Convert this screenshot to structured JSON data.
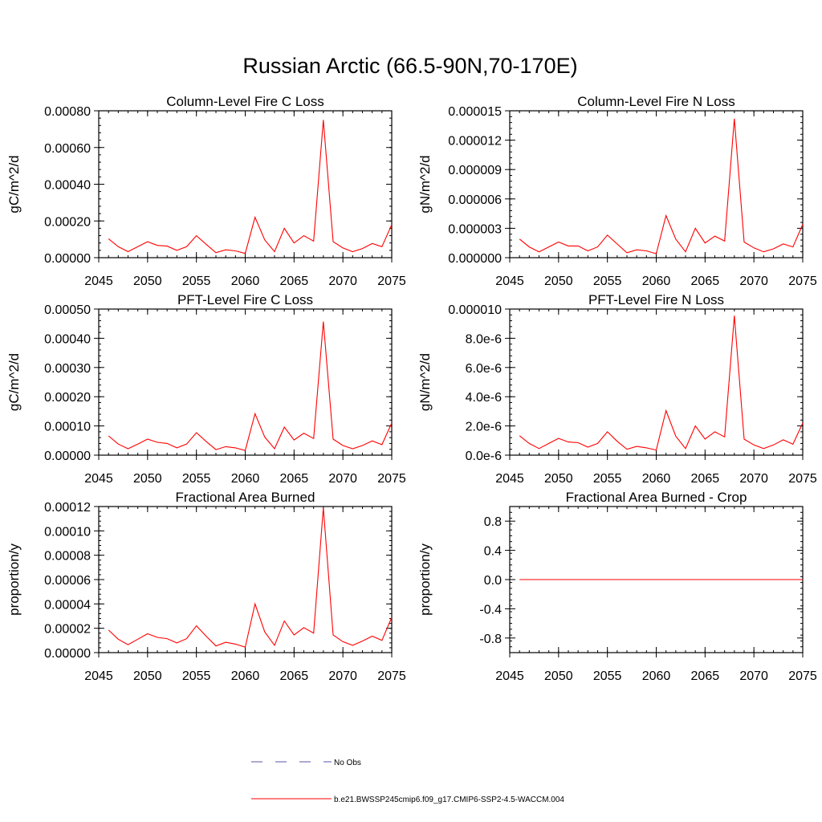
{
  "figure": {
    "title": "Russian Arctic (66.5-90N,70-170E)",
    "line_color": "#ff0000",
    "obs_color": "#5555aa"
  },
  "legend": [
    {
      "label": "No Obs",
      "style": "dashed",
      "color": "#5555aa"
    },
    {
      "label": "b.e21.BWSSP245cmip6.f09_g17.CMIP6-SSP2-4.5-WACCM.004",
      "style": "solid",
      "color": "#ff0000"
    }
  ],
  "chart_data": [
    {
      "type": "line",
      "title": "Column-Level Fire C Loss",
      "ylabel": "gC/m^2/d",
      "xlim": [
        2045,
        2075
      ],
      "ylim": [
        0,
        0.0008
      ],
      "xticks": [
        2045,
        2050,
        2055,
        2060,
        2065,
        2070,
        2075
      ],
      "xtick_labels": [
        "2045",
        "2050",
        "2055",
        "2060",
        "2065",
        "2070",
        "2075"
      ],
      "yticks": [
        0,
        0.0002,
        0.0004,
        0.0006,
        0.0008
      ],
      "ytick_labels": [
        "0.00000",
        "0.00020",
        "0.00040",
        "0.00060",
        "0.00080"
      ],
      "x": [
        2046,
        2047,
        2048,
        2049,
        2050,
        2051,
        2052,
        2053,
        2054,
        2055,
        2056,
        2057,
        2058,
        2059,
        2060,
        2061,
        2062,
        2063,
        2064,
        2065,
        2066,
        2067,
        2068,
        2069,
        2070,
        2071,
        2072,
        2073,
        2074,
        2075
      ],
      "series": [
        {
          "values": [
            0.000103,
            6e-05,
            3.3e-05,
            6e-05,
            8.7e-05,
            6.7e-05,
            6.3e-05,
            4e-05,
            6e-05,
            0.00012,
            7.3e-05,
            2.7e-05,
            4.3e-05,
            3.7e-05,
            2.3e-05,
            0.00022,
            9.7e-05,
            3.3e-05,
            0.00016,
            8e-05,
            0.00012,
            9e-05,
            0.00075,
            8.7e-05,
            5.3e-05,
            3.3e-05,
            5e-05,
            7.7e-05,
            6e-05,
            0.00018
          ]
        }
      ]
    },
    {
      "type": "line",
      "title": "Column-Level Fire N Loss",
      "ylabel": "gN/m^2/d",
      "xlim": [
        2045,
        2075
      ],
      "ylim": [
        0,
        1.5e-05
      ],
      "xticks": [
        2045,
        2050,
        2055,
        2060,
        2065,
        2070,
        2075
      ],
      "xtick_labels": [
        "2045",
        "2050",
        "2055",
        "2060",
        "2065",
        "2070",
        "2075"
      ],
      "yticks": [
        0,
        3e-06,
        6e-06,
        9e-06,
        1.2e-05,
        1.5e-05
      ],
      "ytick_labels": [
        "0.000000",
        "0.000003",
        "0.000006",
        "0.000009",
        "0.000012",
        "0.000015"
      ],
      "x": [
        2046,
        2047,
        2048,
        2049,
        2050,
        2051,
        2052,
        2053,
        2054,
        2055,
        2056,
        2057,
        2058,
        2059,
        2060,
        2061,
        2062,
        2063,
        2064,
        2065,
        2066,
        2067,
        2068,
        2069,
        2070,
        2071,
        2072,
        2073,
        2074,
        2075
      ],
      "series": [
        {
          "values": [
            1.9e-06,
            1.1e-06,
            6e-07,
            1.1e-06,
            1.6e-06,
            1.2e-06,
            1.2e-06,
            7e-07,
            1.1e-06,
            2.3e-06,
            1.4e-06,
            5e-07,
            8e-07,
            7e-07,
            4e-07,
            4.3e-06,
            1.9e-06,
            6e-07,
            3e-06,
            1.5e-06,
            2.2e-06,
            1.7e-06,
            1.42e-05,
            1.6e-06,
            1e-06,
            6e-07,
            9e-07,
            1.4e-06,
            1.1e-06,
            3.4e-06
          ]
        }
      ]
    },
    {
      "type": "line",
      "title": "PFT-Level Fire C Loss",
      "ylabel": "gC/m^2/d",
      "xlim": [
        2045,
        2075
      ],
      "ylim": [
        0,
        0.0005
      ],
      "xticks": [
        2045,
        2050,
        2055,
        2060,
        2065,
        2070,
        2075
      ],
      "xtick_labels": [
        "2045",
        "2050",
        "2055",
        "2060",
        "2065",
        "2070",
        "2075"
      ],
      "yticks": [
        0,
        0.0001,
        0.0002,
        0.0003,
        0.0004,
        0.0005
      ],
      "ytick_labels": [
        "0.00000",
        "0.00010",
        "0.00020",
        "0.00030",
        "0.00040",
        "0.00050"
      ],
      "x": [
        2046,
        2047,
        2048,
        2049,
        2050,
        2051,
        2052,
        2053,
        2054,
        2055,
        2056,
        2057,
        2058,
        2059,
        2060,
        2061,
        2062,
        2063,
        2064,
        2065,
        2066,
        2067,
        2068,
        2069,
        2070,
        2071,
        2072,
        2073,
        2074,
        2075
      ],
      "series": [
        {
          "values": [
            6.6e-05,
            3.8e-05,
            2.2e-05,
            3.8e-05,
            5.5e-05,
            4.4e-05,
            4e-05,
            2.5e-05,
            3.8e-05,
            7.7e-05,
            4.7e-05,
            1.9e-05,
            2.9e-05,
            2.5e-05,
            1.6e-05,
            0.000142,
            6.2e-05,
            2.2e-05,
            9.6e-05,
            5.2e-05,
            7.5e-05,
            5.7e-05,
            0.000457,
            5.5e-05,
            3.3e-05,
            2.2e-05,
            3.3e-05,
            4.9e-05,
            3.6e-05,
            0.00011
          ]
        }
      ]
    },
    {
      "type": "line",
      "title": "PFT-Level Fire N Loss",
      "ylabel": "gN/m^2/d",
      "xlim": [
        2045,
        2075
      ],
      "ylim": [
        0,
        1e-05
      ],
      "xticks": [
        2045,
        2050,
        2055,
        2060,
        2065,
        2070,
        2075
      ],
      "xtick_labels": [
        "2045",
        "2050",
        "2055",
        "2060",
        "2065",
        "2070",
        "2075"
      ],
      "yticks": [
        0,
        2e-06,
        4e-06,
        6e-06,
        8e-06,
        1e-05
      ],
      "ytick_labels": [
        "0.0e-6",
        "2.0e-6",
        "4.0e-6",
        "6.0e-6",
        "8.0e-6",
        "0.000010"
      ],
      "x": [
        2046,
        2047,
        2048,
        2049,
        2050,
        2051,
        2052,
        2053,
        2054,
        2055,
        2056,
        2057,
        2058,
        2059,
        2060,
        2061,
        2062,
        2063,
        2064,
        2065,
        2066,
        2067,
        2068,
        2069,
        2070,
        2071,
        2072,
        2073,
        2074,
        2075
      ],
      "series": [
        {
          "values": [
            1.33e-06,
            8e-07,
            4.5e-07,
            8e-07,
            1.15e-06,
            9e-07,
            8.5e-07,
            5.5e-07,
            8e-07,
            1.6e-06,
            9.5e-07,
            4e-07,
            6e-07,
            5e-07,
            3.5e-07,
            3.05e-06,
            1.3e-06,
            4.5e-07,
            2e-06,
            1.1e-06,
            1.6e-06,
            1.25e-06,
            9.55e-06,
            1.1e-06,
            7e-07,
            4.5e-07,
            7e-07,
            1.05e-06,
            7.5e-07,
            2.2e-06
          ]
        }
      ]
    },
    {
      "type": "line",
      "title": "Fractional Area Burned",
      "ylabel": "proportion/y",
      "xlim": [
        2045,
        2075
      ],
      "ylim": [
        0,
        0.00012
      ],
      "xticks": [
        2045,
        2050,
        2055,
        2060,
        2065,
        2070,
        2075
      ],
      "xtick_labels": [
        "2045",
        "2050",
        "2055",
        "2060",
        "2065",
        "2070",
        "2075"
      ],
      "yticks": [
        0,
        2e-05,
        4e-05,
        6e-05,
        8e-05,
        0.0001,
        0.00012
      ],
      "ytick_labels": [
        "0.00000",
        "0.00002",
        "0.00004",
        "0.00006",
        "0.00008",
        "0.00010",
        "0.00012"
      ],
      "x": [
        2046,
        2047,
        2048,
        2049,
        2050,
        2051,
        2052,
        2053,
        2054,
        2055,
        2056,
        2057,
        2058,
        2059,
        2060,
        2061,
        2062,
        2063,
        2064,
        2065,
        2066,
        2067,
        2068,
        2069,
        2070,
        2071,
        2072,
        2073,
        2074,
        2075
      ],
      "series": [
        {
          "values": [
            1.85e-05,
            1.1e-05,
            6.5e-06,
            1.1e-05,
            1.55e-05,
            1.25e-05,
            1.15e-05,
            8e-06,
            1.15e-05,
            2.2e-05,
            1.35e-05,
            5.5e-06,
            8.5e-06,
            7e-06,
            4.5e-06,
            4e-05,
            1.7e-05,
            6e-06,
            2.6e-05,
            1.45e-05,
            2.05e-05,
            1.6e-05,
            0.000119,
            1.45e-05,
            9e-06,
            6e-06,
            9.5e-06,
            1.35e-05,
            1e-05,
            2.9e-05
          ]
        }
      ]
    },
    {
      "type": "line",
      "title": "Fractional Area Burned - Crop",
      "ylabel": "proportion/y",
      "xlim": [
        2045,
        2075
      ],
      "ylim": [
        -1,
        1
      ],
      "xticks": [
        2045,
        2050,
        2055,
        2060,
        2065,
        2070,
        2075
      ],
      "xtick_labels": [
        "2045",
        "2050",
        "2055",
        "2060",
        "2065",
        "2070",
        "2075"
      ],
      "yticks": [
        -0.8,
        -0.4,
        0,
        0.4,
        0.8
      ],
      "ytick_labels": [
        "-0.8",
        "-0.4",
        "0.0",
        "0.4",
        "0.8"
      ],
      "x": [
        2046,
        2047,
        2048,
        2049,
        2050,
        2051,
        2052,
        2053,
        2054,
        2055,
        2056,
        2057,
        2058,
        2059,
        2060,
        2061,
        2062,
        2063,
        2064,
        2065,
        2066,
        2067,
        2068,
        2069,
        2070,
        2071,
        2072,
        2073,
        2074,
        2075
      ],
      "series": [
        {
          "values": [
            0,
            0,
            0,
            0,
            0,
            0,
            0,
            0,
            0,
            0,
            0,
            0,
            0,
            0,
            0,
            0,
            0,
            0,
            0,
            0,
            0,
            0,
            0,
            0,
            0,
            0,
            0,
            0,
            0,
            0
          ]
        }
      ]
    }
  ]
}
